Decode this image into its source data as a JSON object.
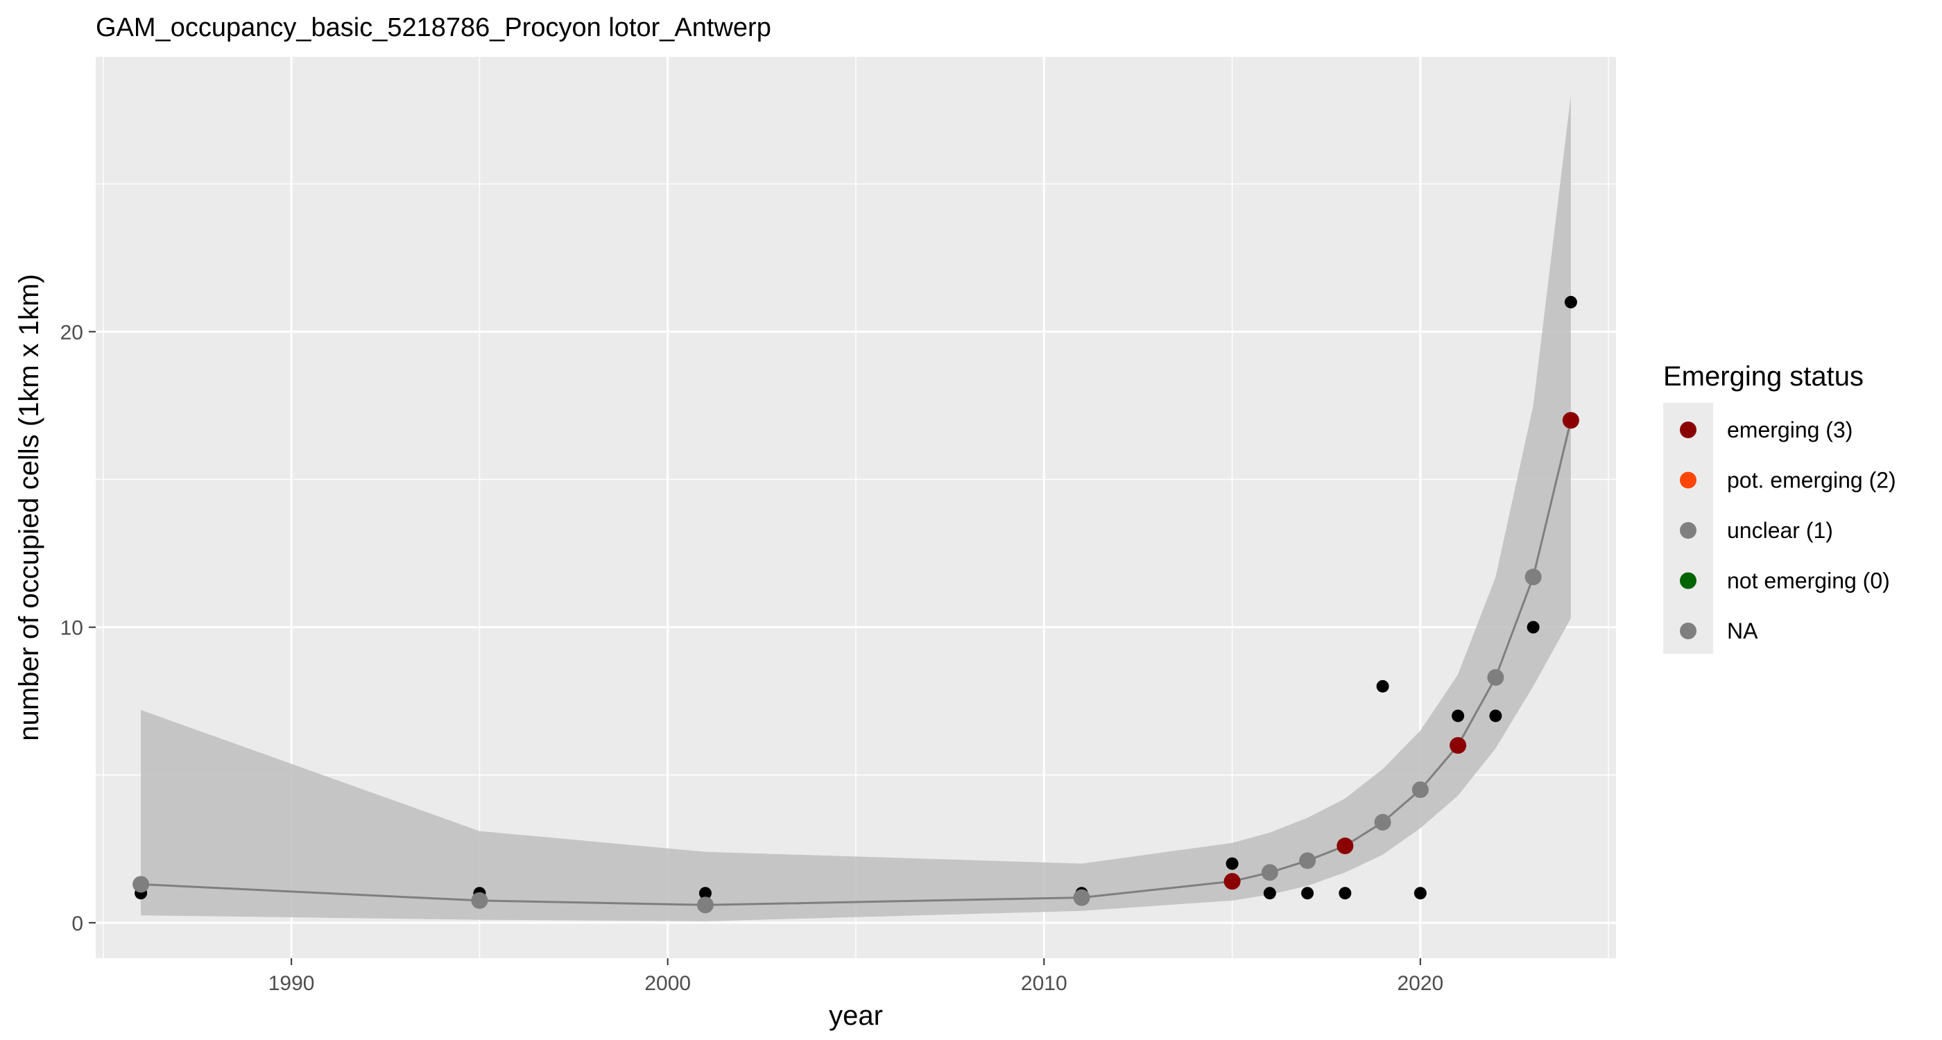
{
  "chart_data": {
    "type": "line",
    "title": "GAM_occupancy_basic_5218786_Procyon lotor_Antwerp",
    "xlabel": "year",
    "ylabel": "number of occupied cells (1km x 1km)",
    "xlim": [
      1984.8,
      2025.2
    ],
    "ylim": [
      -1.2,
      29.3
    ],
    "x_ticks": [
      1990,
      2000,
      2010,
      2020
    ],
    "x_minor_ticks": [
      1985,
      1995,
      2005,
      2015,
      2025
    ],
    "y_ticks": [
      0,
      10,
      20
    ],
    "y_minor_ticks": [
      5,
      15,
      25
    ],
    "grid": true,
    "panel_background": "#ebebeb",
    "observed": {
      "x": [
        1986,
        1995,
        2001,
        2011,
        2015,
        2016,
        2017,
        2018,
        2019,
        2020,
        2021,
        2022,
        2023,
        2024
      ],
      "y": [
        1,
        1,
        1,
        1,
        2,
        1,
        1,
        1,
        8,
        1,
        7,
        7,
        10,
        21
      ],
      "color": "#000000"
    },
    "fit": {
      "x": [
        1986,
        1995,
        2001,
        2011,
        2015,
        2016,
        2017,
        2018,
        2019,
        2020,
        2021,
        2022,
        2023,
        2024
      ],
      "y": [
        1.3,
        0.75,
        0.6,
        0.85,
        1.4,
        1.7,
        2.1,
        2.6,
        3.4,
        4.5,
        6.0,
        8.3,
        11.7,
        17.0
      ],
      "lower": [
        0.25,
        0.1,
        0.05,
        0.4,
        0.75,
        0.95,
        1.25,
        1.7,
        2.3,
        3.2,
        4.3,
        5.9,
        8.0,
        10.3
      ],
      "upper": [
        7.2,
        3.1,
        2.4,
        2.0,
        2.7,
        3.05,
        3.55,
        4.2,
        5.2,
        6.5,
        8.4,
        11.7,
        17.5,
        28.0
      ],
      "status": [
        "NA",
        "NA",
        "NA",
        "NA",
        "emerging (3)",
        "unclear (1)",
        "unclear (1)",
        "emerging (3)",
        "unclear (1)",
        "unclear (1)",
        "emerging (3)",
        "unclear (1)",
        "unclear (1)",
        "emerging (3)"
      ],
      "line_color": "#7f7f7f",
      "ribbon_color": "#bebebe"
    },
    "legend": {
      "title": "Emerging status",
      "position": "right",
      "entries": [
        {
          "label": "emerging (3)",
          "color": "#8b0000"
        },
        {
          "label": "pot. emerging (2)",
          "color": "#ff4500"
        },
        {
          "label": "unclear (1)",
          "color": "#7f7f7f"
        },
        {
          "label": "not emerging (0)",
          "color": "#006400"
        },
        {
          "label": "NA",
          "color": "#7f7f7f"
        }
      ]
    }
  }
}
